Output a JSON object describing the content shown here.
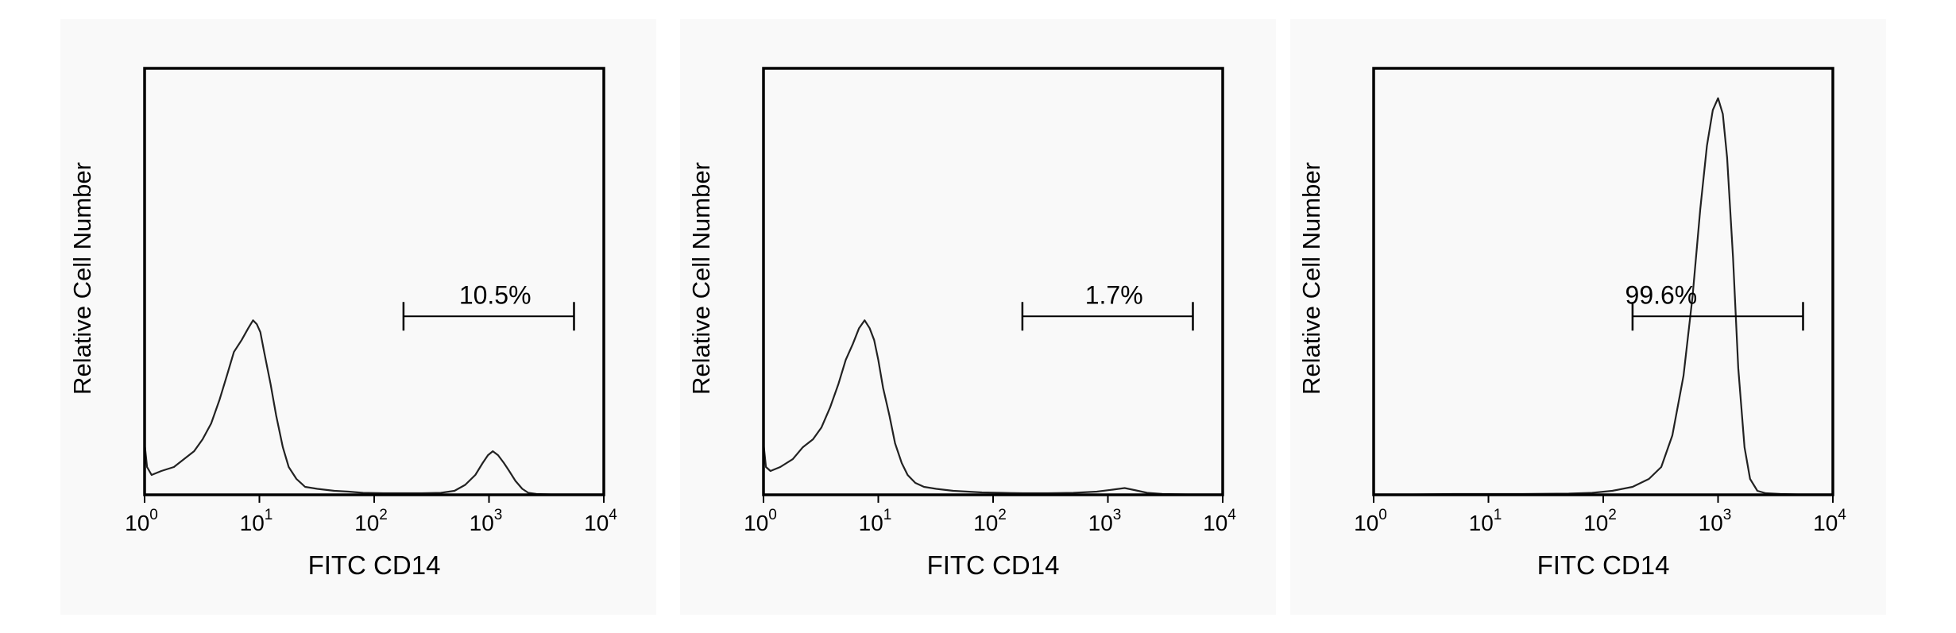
{
  "chart_data": [
    {
      "type": "line",
      "scale": "log",
      "xlabel": "FITC CD14",
      "ylabel": "Relative Cell Number",
      "xlim": [
        1,
        10000
      ],
      "xticks": [
        {
          "base": "10",
          "exp": "0"
        },
        {
          "base": "10",
          "exp": "1"
        },
        {
          "base": "10",
          "exp": "2"
        },
        {
          "base": "10",
          "exp": "3"
        },
        {
          "base": "10",
          "exp": "4"
        }
      ],
      "gate": {
        "label": "10.5%",
        "range": [
          180,
          5500
        ],
        "level": 0.45
      },
      "series": [
        {
          "x": [
            1,
            1.05,
            1.15,
            1.4,
            1.8,
            2.2,
            2.7,
            3.2,
            3.8,
            4.5,
            5.2,
            6,
            7,
            8,
            8.8,
            9.5,
            10.2,
            11,
            12.5,
            14,
            16,
            18,
            21,
            25,
            32,
            45,
            60,
            80,
            120,
            180,
            260,
            380,
            500,
            620,
            760,
            880,
            980,
            1080,
            1200,
            1350,
            1500,
            1700,
            1950,
            2200,
            2600,
            3500,
            5000,
            10000
          ],
          "y": [
            0.13,
            0.07,
            0.05,
            0.06,
            0.07,
            0.09,
            0.11,
            0.14,
            0.18,
            0.24,
            0.3,
            0.36,
            0.39,
            0.42,
            0.44,
            0.43,
            0.41,
            0.36,
            0.28,
            0.2,
            0.12,
            0.07,
            0.04,
            0.02,
            0.015,
            0.01,
            0.008,
            0.005,
            0.004,
            0.004,
            0.004,
            0.005,
            0.01,
            0.025,
            0.05,
            0.08,
            0.1,
            0.11,
            0.1,
            0.08,
            0.06,
            0.035,
            0.015,
            0.005,
            0.002,
            0.001,
            0.001,
            0.001
          ]
        }
      ]
    },
    {
      "type": "line",
      "scale": "log",
      "xlabel": "FITC CD14",
      "ylabel": "Relative Cell Number",
      "xlim": [
        1,
        10000
      ],
      "xticks": [
        {
          "base": "10",
          "exp": "0"
        },
        {
          "base": "10",
          "exp": "1"
        },
        {
          "base": "10",
          "exp": "2"
        },
        {
          "base": "10",
          "exp": "3"
        },
        {
          "base": "10",
          "exp": "4"
        }
      ],
      "gate": {
        "label": "1.7%",
        "range": [
          180,
          5500
        ],
        "level": 0.45
      },
      "series": [
        {
          "x": [
            1,
            1.05,
            1.15,
            1.4,
            1.8,
            2.2,
            2.7,
            3.2,
            3.8,
            4.5,
            5.2,
            6,
            6.8,
            7.6,
            8.4,
            9.2,
            10,
            11,
            12.5,
            14,
            16,
            18,
            21,
            25,
            32,
            45,
            60,
            80,
            120,
            180,
            300,
            500,
            800,
            1100,
            1400,
            1700,
            2200,
            3000,
            5000,
            10000
          ],
          "y": [
            0.13,
            0.07,
            0.06,
            0.07,
            0.09,
            0.12,
            0.14,
            0.17,
            0.22,
            0.28,
            0.34,
            0.38,
            0.42,
            0.44,
            0.42,
            0.39,
            0.34,
            0.27,
            0.2,
            0.13,
            0.08,
            0.05,
            0.03,
            0.02,
            0.015,
            0.01,
            0.008,
            0.006,
            0.005,
            0.004,
            0.004,
            0.005,
            0.008,
            0.013,
            0.017,
            0.012,
            0.005,
            0.002,
            0.001,
            0.001
          ]
        }
      ]
    },
    {
      "type": "line",
      "scale": "log",
      "xlabel": "FITC CD14",
      "ylabel": "Relative Cell Number",
      "xlim": [
        1,
        10000
      ],
      "xticks": [
        {
          "base": "10",
          "exp": "0"
        },
        {
          "base": "10",
          "exp": "1"
        },
        {
          "base": "10",
          "exp": "2"
        },
        {
          "base": "10",
          "exp": "3"
        },
        {
          "base": "10",
          "exp": "4"
        }
      ],
      "gate": {
        "label": "99.6%",
        "range": [
          180,
          5500
        ],
        "level": 0.45
      },
      "series": [
        {
          "x": [
            1,
            2,
            5,
            10,
            20,
            50,
            80,
            120,
            180,
            250,
            320,
            400,
            500,
            600,
            700,
            800,
            900,
            1000,
            1100,
            1200,
            1350,
            1500,
            1700,
            1900,
            2200,
            2600,
            3500,
            5000,
            10000
          ],
          "y": [
            0.001,
            0.001,
            0.002,
            0.002,
            0.002,
            0.003,
            0.005,
            0.01,
            0.02,
            0.04,
            0.07,
            0.15,
            0.3,
            0.5,
            0.72,
            0.88,
            0.97,
            1.0,
            0.96,
            0.85,
            0.6,
            0.32,
            0.12,
            0.04,
            0.01,
            0.004,
            0.002,
            0.001,
            0.001
          ]
        }
      ]
    }
  ]
}
